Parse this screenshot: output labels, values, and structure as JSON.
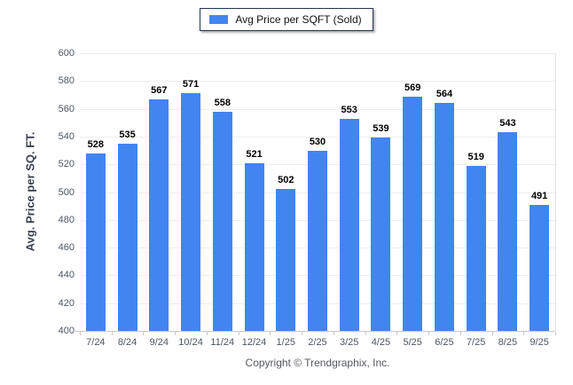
{
  "legend": {
    "label": "Avg Price per SQFT (Sold)",
    "swatch_color": "#4285f0"
  },
  "footer": {
    "copyright": "Copyright © Trendgraphix, Inc."
  },
  "chart_data": {
    "type": "bar",
    "title": "",
    "categories": [
      "7/24",
      "8/24",
      "9/24",
      "10/24",
      "11/24",
      "12/24",
      "1/25",
      "2/25",
      "3/25",
      "4/25",
      "5/25",
      "6/25",
      "7/25",
      "8/25",
      "9/25"
    ],
    "values": [
      528,
      535,
      567,
      571,
      558,
      521,
      502,
      530,
      553,
      539,
      569,
      564,
      519,
      543,
      491
    ],
    "series_name": "Avg Price per SQFT (Sold)",
    "xlabel": "",
    "ylabel": "Avg. Price per SQ. FT.",
    "ylim": [
      400,
      600
    ],
    "ytick_step": 20,
    "grid": true,
    "legend_position": "top-center",
    "bar_color": "#4285f0",
    "gridline_color": "#ededed",
    "axis_color": "#c8c8c8",
    "tick_label_color": "#4b5563",
    "value_label_color": "#000000"
  }
}
